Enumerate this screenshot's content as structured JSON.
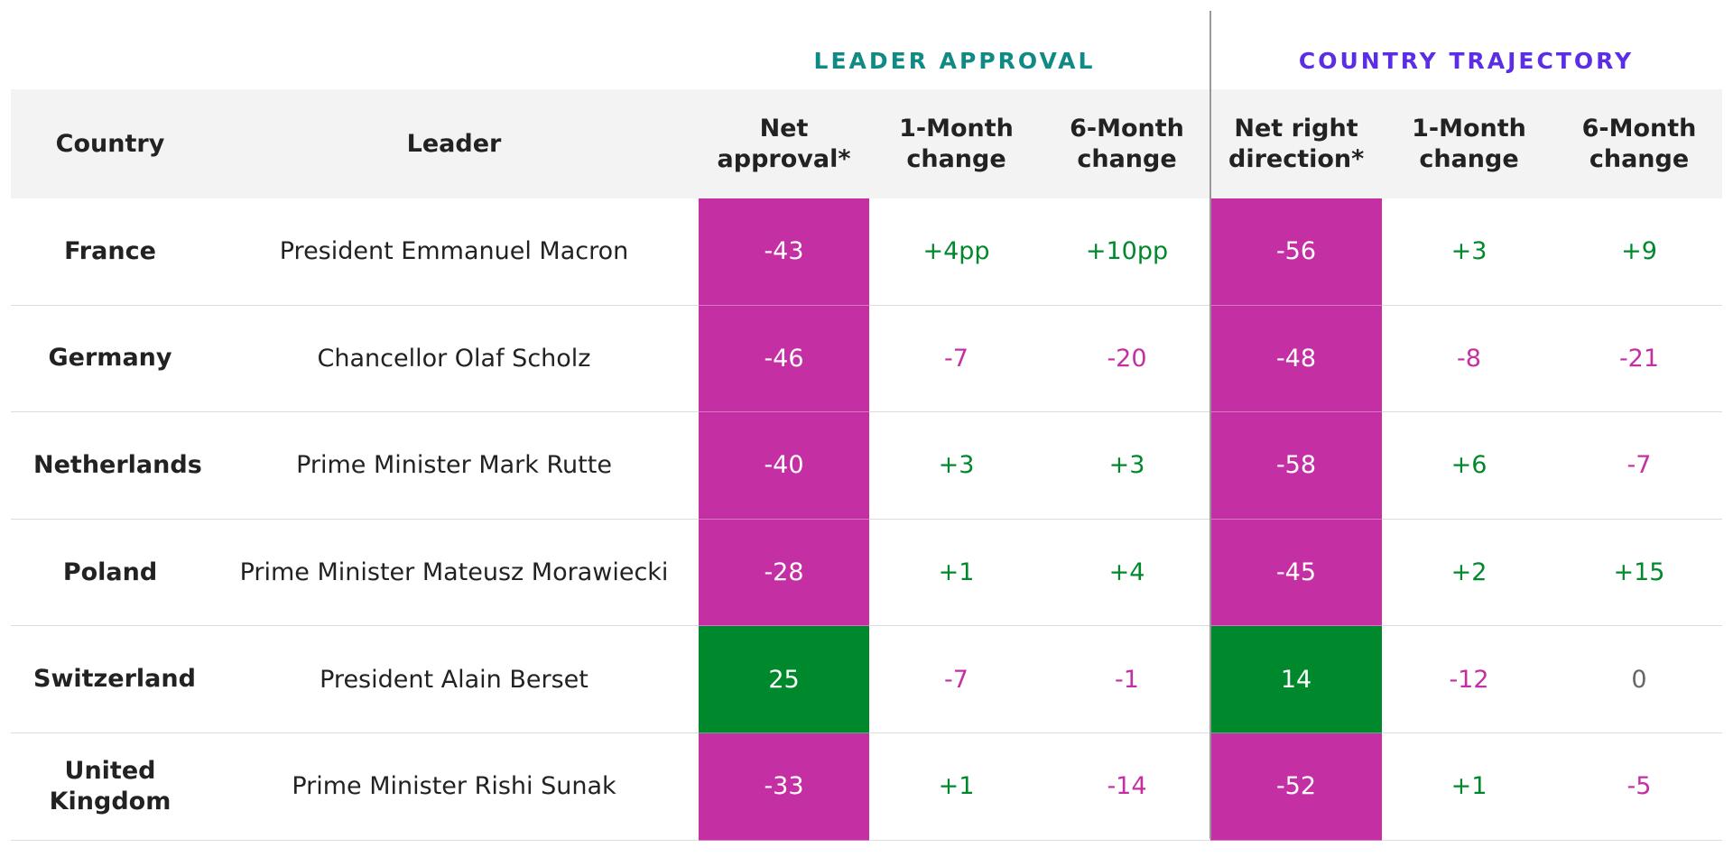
{
  "group_headers": [
    "LEADER APPROVAL",
    "COUNTRY TRAJECTORY"
  ],
  "table": {
    "columns": [
      "Country",
      "Leader",
      "Net approval*",
      "1-Month change",
      "6-Month change",
      "Net right direction*",
      "1-Month change",
      "6-Month change"
    ],
    "rows": [
      [
        "France",
        "President Emmanuel Macron",
        "-43",
        "+4pp",
        "+10pp",
        "-56",
        "+3",
        "+9"
      ],
      [
        "Germany",
        "Chancellor Olaf Scholz",
        "-46",
        "-7",
        "-20",
        "-48",
        "-8",
        "-21"
      ],
      [
        "Netherlands",
        "Prime Minister Mark Rutte",
        "-40",
        "+3",
        "+3",
        "-58",
        "+6",
        "-7"
      ],
      [
        "Poland",
        "Prime Minister Mateusz Morawiecki",
        "-28",
        "+1",
        "+4",
        "-45",
        "+2",
        "+15"
      ],
      [
        "Switzerland",
        "President Alain Berset",
        "25",
        "-7",
        "-1",
        "14",
        "-12",
        "0"
      ],
      [
        "United Kingdom",
        "Prime Minister Rishi Sunak",
        "-33",
        "+1",
        "-14",
        "-52",
        "+1",
        "-5"
      ]
    ]
  }
}
